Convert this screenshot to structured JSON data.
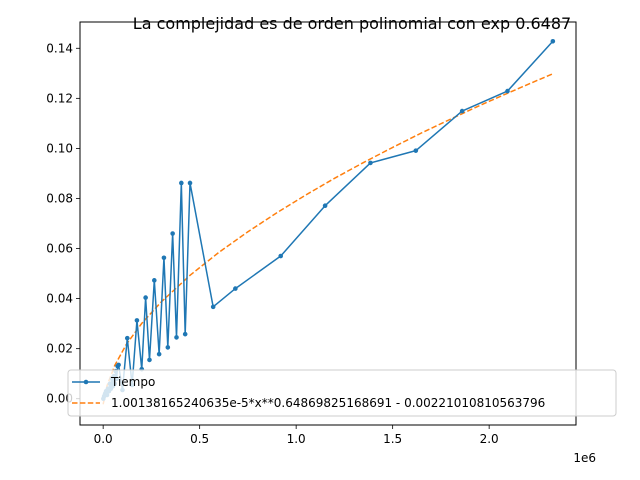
{
  "chart_data": {
    "type": "line",
    "title": "La complejidad es de orden polinomial con exp 0.6487",
    "xlabel": "",
    "ylabel": "",
    "x_offset_label": "1e6",
    "x_scale": 1000000,
    "xlim": [
      -120000,
      2450000
    ],
    "ylim": [
      -0.0105,
      0.1505
    ],
    "x_ticks": [
      0,
      500000,
      1000000,
      1500000,
      2000000
    ],
    "x_tick_labels": [
      "0.0",
      "0.5",
      "1.0",
      "1.5",
      "2.0"
    ],
    "y_ticks": [
      0.0,
      0.02,
      0.04,
      0.06,
      0.08,
      0.1,
      0.12,
      0.14
    ],
    "y_tick_labels": [
      "0.00",
      "0.02",
      "0.04",
      "0.06",
      "0.08",
      "0.10",
      "0.12",
      "0.14"
    ],
    "grid": false,
    "legend_position": "lower-left",
    "series": [
      {
        "name": "Tiempo",
        "color": "#1f77b4",
        "style": "solid-with-dot-markers",
        "x": [
          1000,
          5000,
          10000,
          15000,
          20000,
          25000,
          30000,
          35000,
          40000,
          45000,
          50000,
          55000,
          60000,
          65000,
          70000,
          75000,
          80000,
          100000,
          125000,
          150000,
          175000,
          200000,
          220000,
          240000,
          265000,
          290000,
          315000,
          335000,
          360000,
          380000,
          405000,
          425000,
          450000,
          570000,
          685000,
          920000,
          1150000,
          1385000,
          1620000,
          1860000,
          2095000,
          2330000
        ],
        "y": [
          0.0,
          0.001,
          0.002,
          0.003,
          0.0015,
          0.004,
          0.003,
          0.006,
          0.004,
          0.008,
          0.005,
          0.009,
          0.006,
          0.011,
          0.008,
          0.013,
          0.0135,
          0.0035,
          0.0242,
          0.0055,
          0.0313,
          0.0118,
          0.0404,
          0.0155,
          0.0473,
          0.0178,
          0.0563,
          0.0205,
          0.066,
          0.0245,
          0.0862,
          0.0258,
          0.0862,
          0.0367,
          0.044,
          0.057,
          0.0771,
          0.0942,
          0.0991,
          0.1149,
          0.1229,
          0.1428
        ]
      },
      {
        "name": "1.00138165240635e-5*x**0.64869825168691 - 0.00221010810563796",
        "color": "#ff7f0e",
        "style": "dashed",
        "x": [
          0,
          20000,
          60000,
          120000,
          200000,
          300000,
          450000,
          600000,
          750000,
          900000,
          1050000,
          1200000,
          1350000,
          1500000,
          1650000,
          1800000,
          1950000,
          2100000,
          2250000,
          2330000
        ],
        "y": [
          -0.0022,
          0.0052,
          0.0133,
          0.0217,
          0.0301,
          0.0386,
          0.0493,
          0.0585,
          0.0667,
          0.0743,
          0.0814,
          0.0881,
          0.0944,
          0.1004,
          0.1062,
          0.1117,
          0.1171,
          0.1222,
          0.1272,
          0.1298
        ]
      }
    ]
  }
}
